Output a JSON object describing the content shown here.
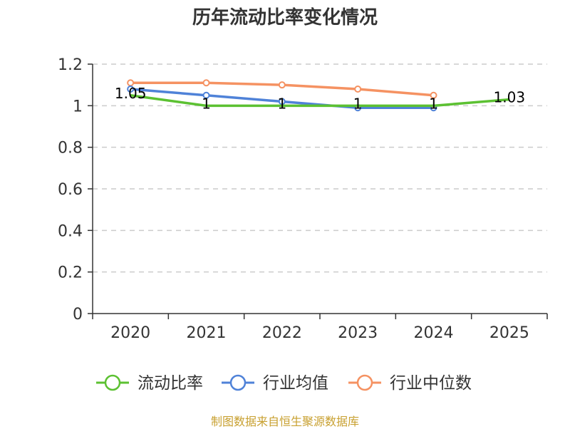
{
  "chart_data": {
    "type": "line",
    "title": "历年流动比率变化情况",
    "categories": [
      "2020",
      "2021",
      "2022",
      "2023",
      "2024",
      "2025"
    ],
    "ylim": [
      0,
      1.2
    ],
    "yticks": [
      "0",
      "0.2",
      "0.4",
      "0.6",
      "0.8",
      "1",
      "1.2"
    ],
    "grid": true,
    "legend_position": "bottom",
    "series": [
      {
        "name": "流动比率",
        "color": "#5cc132",
        "values": [
          1.05,
          1.0,
          1.0,
          1.0,
          1.0,
          1.03
        ],
        "labels": [
          "1.05",
          "1",
          "1",
          "1",
          "1",
          "1.03"
        ]
      },
      {
        "name": "行业均值",
        "color": "#4f82d8",
        "values": [
          1.08,
          1.05,
          1.02,
          0.99,
          0.99,
          null
        ]
      },
      {
        "name": "行业中位数",
        "color": "#f59262",
        "values": [
          1.11,
          1.11,
          1.1,
          1.08,
          1.05,
          null
        ]
      }
    ]
  },
  "source": "制图数据来自恒生聚源数据库"
}
